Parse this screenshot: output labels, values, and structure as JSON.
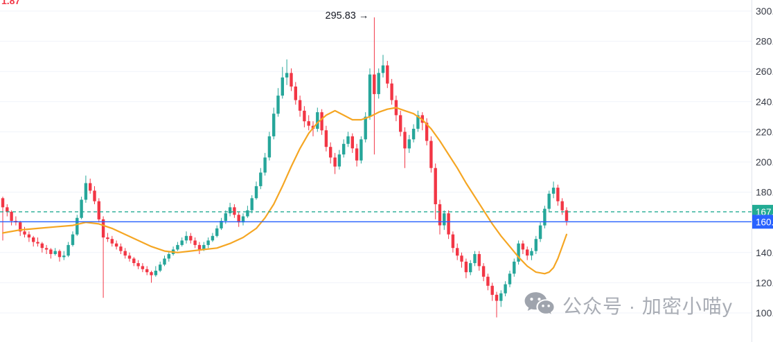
{
  "window": {
    "background": "#ffffff"
  },
  "legend_fragment": {
    "text": "1.87",
    "color": "#f23645"
  },
  "watermark": {
    "text": "公众号 · 加密小喵y"
  },
  "price_axis": {
    "ticks": [
      {
        "value": 300,
        "label": "300."
      },
      {
        "value": 280,
        "label": "280."
      },
      {
        "value": 260,
        "label": "260."
      },
      {
        "value": 240,
        "label": "240."
      },
      {
        "value": 220,
        "label": "220."
      },
      {
        "value": 200,
        "label": "200."
      },
      {
        "value": 180,
        "label": "180."
      },
      {
        "value": 160,
        "label": "160."
      },
      {
        "value": 140,
        "label": "140."
      },
      {
        "value": 120,
        "label": "120."
      },
      {
        "value": 100,
        "label": "100."
      }
    ]
  },
  "price_lines": {
    "alert": {
      "price": 167,
      "label": "167.",
      "color": "#22ab94",
      "style": "dashed"
    },
    "current": {
      "price": 160.4,
      "label": "160.",
      "color": "#2962ff",
      "style": "solid"
    }
  },
  "chart_data": {
    "type": "candlestick",
    "ylim": [
      100,
      300
    ],
    "grid": true,
    "colors": {
      "up": "#26a69a",
      "down": "#f23645",
      "ma": "#f5a623",
      "grid": "#f0f3fa"
    },
    "annotation": {
      "text": "295.83 →",
      "price": 295.83,
      "candle_index": 85
    },
    "candles": [
      [
        176,
        177,
        148,
        170
      ],
      [
        170,
        172,
        164,
        167
      ],
      [
        167,
        168,
        158,
        161
      ],
      [
        161,
        164,
        158,
        160
      ],
      [
        160,
        161,
        151,
        154
      ],
      [
        154,
        157,
        150,
        152
      ],
      [
        152,
        154,
        147,
        150
      ],
      [
        150,
        151,
        144,
        147
      ],
      [
        147,
        150,
        144,
        146
      ],
      [
        146,
        147,
        140,
        143
      ],
      [
        143,
        145,
        139,
        142
      ],
      [
        142,
        143,
        136,
        139
      ],
      [
        139,
        143,
        138,
        141
      ],
      [
        141,
        142,
        134,
        137
      ],
      [
        137,
        141,
        135,
        138
      ],
      [
        138,
        147,
        137,
        145
      ],
      [
        145,
        154,
        144,
        152
      ],
      [
        152,
        165,
        151,
        163
      ],
      [
        163,
        177,
        162,
        175
      ],
      [
        175,
        191,
        173,
        186
      ],
      [
        186,
        189,
        179,
        181
      ],
      [
        181,
        184,
        172,
        174
      ],
      [
        174,
        176,
        160,
        162
      ],
      [
        162,
        164,
        110,
        150
      ],
      [
        150,
        153,
        147,
        149
      ],
      [
        149,
        151,
        144,
        146
      ],
      [
        146,
        148,
        142,
        144
      ],
      [
        144,
        146,
        139,
        141
      ],
      [
        141,
        143,
        136,
        138
      ],
      [
        138,
        140,
        134,
        136
      ],
      [
        136,
        137,
        131,
        133
      ],
      [
        133,
        135,
        129,
        131
      ],
      [
        131,
        133,
        127,
        129
      ],
      [
        129,
        131,
        125,
        127
      ],
      [
        127,
        128,
        120,
        125
      ],
      [
        125,
        131,
        124,
        128
      ],
      [
        128,
        134,
        127,
        132
      ],
      [
        132,
        138,
        131,
        136
      ],
      [
        136,
        141,
        134,
        139
      ],
      [
        139,
        144,
        138,
        142
      ],
      [
        142,
        147,
        141,
        145
      ],
      [
        145,
        150,
        144,
        148
      ],
      [
        148,
        154,
        146,
        151
      ],
      [
        151,
        153,
        146,
        148
      ],
      [
        148,
        150,
        143,
        145
      ],
      [
        145,
        147,
        139,
        142
      ],
      [
        142,
        147,
        141,
        145
      ],
      [
        145,
        150,
        143,
        148
      ],
      [
        148,
        153,
        147,
        151
      ],
      [
        151,
        158,
        150,
        156
      ],
      [
        156,
        163,
        155,
        161
      ],
      [
        161,
        168,
        159,
        166
      ],
      [
        166,
        173,
        164,
        170
      ],
      [
        170,
        172,
        163,
        165
      ],
      [
        165,
        167,
        157,
        160
      ],
      [
        160,
        166,
        158,
        164
      ],
      [
        164,
        171,
        163,
        168
      ],
      [
        168,
        178,
        166,
        176
      ],
      [
        176,
        187,
        175,
        184
      ],
      [
        184,
        196,
        182,
        193
      ],
      [
        193,
        206,
        191,
        203
      ],
      [
        203,
        220,
        201,
        217
      ],
      [
        217,
        236,
        215,
        232
      ],
      [
        232,
        249,
        230,
        244
      ],
      [
        244,
        263,
        242,
        256
      ],
      [
        256,
        268,
        251,
        259
      ],
      [
        259,
        262,
        247,
        250
      ],
      [
        250,
        253,
        238,
        241
      ],
      [
        241,
        244,
        230,
        234
      ],
      [
        234,
        237,
        223,
        227
      ],
      [
        227,
        231,
        221,
        224
      ],
      [
        224,
        227,
        217,
        222
      ],
      [
        222,
        236,
        220,
        233
      ],
      [
        233,
        235,
        218,
        221
      ],
      [
        221,
        224,
        207,
        210
      ],
      [
        210,
        213,
        199,
        203
      ],
      [
        203,
        206,
        192,
        197
      ],
      [
        197,
        208,
        195,
        205
      ],
      [
        205,
        215,
        203,
        212
      ],
      [
        212,
        220,
        210,
        217
      ],
      [
        217,
        219,
        206,
        209
      ],
      [
        209,
        212,
        197,
        201
      ],
      [
        201,
        217,
        199,
        215
      ],
      [
        215,
        233,
        213,
        230
      ],
      [
        230,
        262,
        228,
        258
      ],
      [
        258,
        295.83,
        205,
        245
      ],
      [
        245,
        262,
        242,
        259
      ],
      [
        259,
        271,
        256,
        264
      ],
      [
        264,
        267,
        249,
        252
      ],
      [
        252,
        255,
        238,
        241
      ],
      [
        241,
        244,
        227,
        231
      ],
      [
        231,
        234,
        217,
        220
      ],
      [
        220,
        223,
        196,
        209
      ],
      [
        209,
        218,
        206,
        215
      ],
      [
        215,
        225,
        213,
        222
      ],
      [
        222,
        234,
        220,
        231
      ],
      [
        231,
        233,
        221,
        226
      ],
      [
        226,
        229,
        211,
        214
      ],
      [
        214,
        217,
        193,
        196
      ],
      [
        196,
        199,
        162,
        172
      ],
      [
        172,
        175,
        152,
        158
      ],
      [
        158,
        168,
        155,
        166
      ],
      [
        166,
        168,
        149,
        152
      ],
      [
        152,
        154,
        140,
        143
      ],
      [
        143,
        146,
        135,
        138
      ],
      [
        138,
        140,
        130,
        134
      ],
      [
        134,
        136,
        123,
        127
      ],
      [
        127,
        135,
        125,
        133
      ],
      [
        133,
        141,
        131,
        139
      ],
      [
        139,
        141,
        128,
        131
      ],
      [
        131,
        133,
        121,
        124
      ],
      [
        124,
        126,
        115,
        118
      ],
      [
        118,
        120,
        108,
        112
      ],
      [
        112,
        114,
        97,
        108
      ],
      [
        108,
        115,
        104,
        113
      ],
      [
        113,
        121,
        111,
        119
      ],
      [
        119,
        128,
        117,
        126
      ],
      [
        126,
        136,
        124,
        134
      ],
      [
        134,
        148,
        132,
        146
      ],
      [
        146,
        148,
        139,
        142
      ],
      [
        142,
        144,
        135,
        138
      ],
      [
        138,
        143,
        135,
        141
      ],
      [
        141,
        151,
        139,
        149
      ],
      [
        149,
        160,
        147,
        158
      ],
      [
        158,
        171,
        156,
        169
      ],
      [
        169,
        181,
        167,
        179
      ],
      [
        179,
        187,
        176,
        183
      ],
      [
        183,
        185,
        171,
        174
      ],
      [
        174,
        176,
        165,
        168
      ],
      [
        168,
        170,
        158,
        161
      ]
    ],
    "ma_points": [
      [
        0,
        153
      ],
      [
        4,
        155
      ],
      [
        8,
        156
      ],
      [
        12,
        157
      ],
      [
        16,
        158
      ],
      [
        19,
        160
      ],
      [
        22,
        159
      ],
      [
        25,
        156
      ],
      [
        28,
        152
      ],
      [
        31,
        148
      ],
      [
        34,
        144
      ],
      [
        37,
        141
      ],
      [
        40,
        140
      ],
      [
        43,
        141
      ],
      [
        46,
        142
      ],
      [
        49,
        143
      ],
      [
        52,
        146
      ],
      [
        55,
        150
      ],
      [
        58,
        156
      ],
      [
        60,
        163
      ],
      [
        62,
        172
      ],
      [
        64,
        184
      ],
      [
        66,
        197
      ],
      [
        68,
        209
      ],
      [
        70,
        219
      ],
      [
        72,
        226
      ],
      [
        74,
        231
      ],
      [
        76,
        234
      ],
      [
        78,
        231
      ],
      [
        80,
        228
      ],
      [
        82,
        228
      ],
      [
        84,
        230
      ],
      [
        86,
        233
      ],
      [
        88,
        235
      ],
      [
        90,
        236
      ],
      [
        92,
        234
      ],
      [
        94,
        232
      ],
      [
        96,
        228
      ],
      [
        98,
        222
      ],
      [
        100,
        214
      ],
      [
        102,
        205
      ],
      [
        104,
        196
      ],
      [
        106,
        186
      ],
      [
        108,
        177
      ],
      [
        110,
        168
      ],
      [
        112,
        159
      ],
      [
        114,
        151
      ],
      [
        116,
        144
      ],
      [
        118,
        137
      ],
      [
        120,
        131
      ],
      [
        122,
        127
      ],
      [
        124,
        126
      ],
      [
        125,
        127
      ],
      [
        126,
        130
      ],
      [
        127,
        136
      ],
      [
        128,
        144
      ],
      [
        129,
        152
      ]
    ]
  }
}
